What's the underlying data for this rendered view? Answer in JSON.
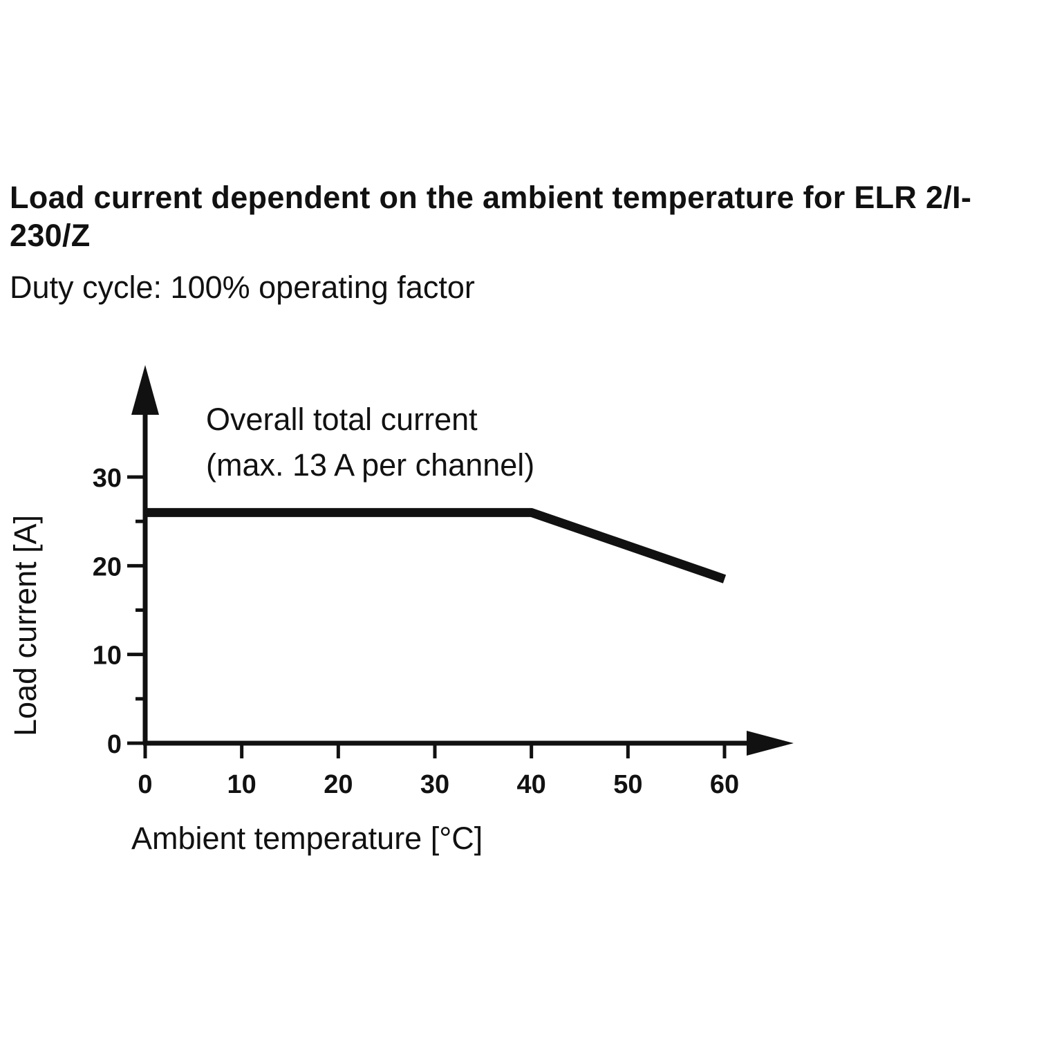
{
  "chart_data": {
    "type": "line",
    "title": "Load current dependent on the ambient temperature for ELR 2/I-230/Z",
    "subtitle": "Duty cycle: 100% operating factor",
    "xlabel": "Ambient temperature [°C]",
    "ylabel": "Load current [A]",
    "xlim": [
      0,
      60
    ],
    "ylim": [
      0,
      30
    ],
    "x_ticks": [
      0,
      10,
      20,
      30,
      40,
      50,
      60
    ],
    "y_ticks": [
      0,
      10,
      20,
      30
    ],
    "grid": false,
    "series": [
      {
        "x": [
          0,
          40,
          60
        ],
        "y": [
          26,
          26,
          18.5
        ],
        "color": "#111111"
      }
    ],
    "annotations": [
      "Overall total current",
      "(max. 13 A per channel)"
    ]
  }
}
